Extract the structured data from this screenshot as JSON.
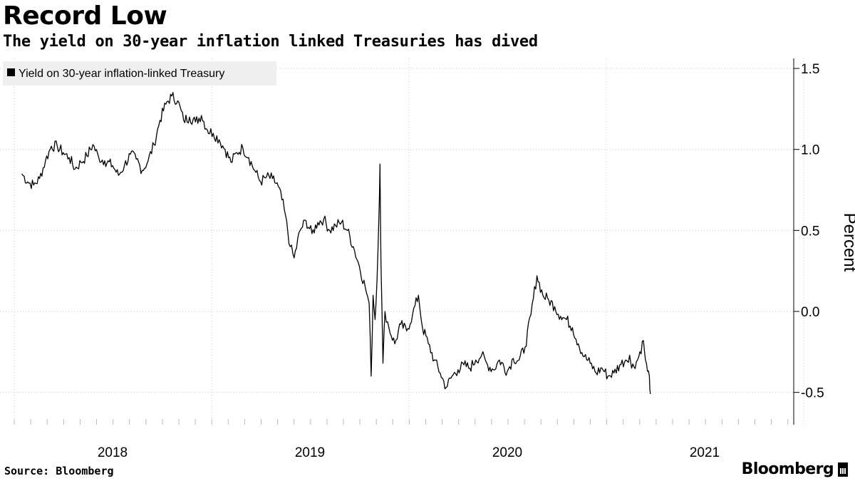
{
  "header": {
    "title": "Record Low",
    "subtitle": "The yield on 30-year inflation linked Treasuries has dived"
  },
  "footer": {
    "source": "Source: Bloomberg",
    "brand": "Bloomberg"
  },
  "colors": {
    "line": "#000000",
    "grid": "#c8c8c8",
    "legend_bg": "#efefef",
    "axis": "#000000"
  },
  "chart_data": {
    "type": "line",
    "title": "Record Low",
    "subtitle": "The yield on 30-year inflation linked Treasuries has dived",
    "xlabel": "",
    "ylabel": "Percent",
    "x_ticks": [
      "2018",
      "2019",
      "2020",
      "2021"
    ],
    "y_ticks": [
      "1.5",
      "1.0",
      "0.5",
      "0.0",
      "-0.5"
    ],
    "y_tick_values": [
      1.5,
      1.0,
      0.5,
      0.0,
      -0.5
    ],
    "ylim": [
      -0.7,
      1.6
    ],
    "xlim": [
      2017.54,
      2021.5
    ],
    "grid": true,
    "legend_position": "top-left",
    "series": [
      {
        "name": "Yield on 30-year inflation-linked Treasury",
        "points": [
          [
            2017.54,
            0.85
          ],
          [
            2017.57,
            0.8
          ],
          [
            2017.6,
            0.78
          ],
          [
            2017.63,
            0.82
          ],
          [
            2017.66,
            0.93
          ],
          [
            2017.69,
            1.02
          ],
          [
            2017.72,
            1.02
          ],
          [
            2017.75,
            0.98
          ],
          [
            2017.78,
            0.95
          ],
          [
            2017.81,
            0.88
          ],
          [
            2017.84,
            0.92
          ],
          [
            2017.87,
            0.96
          ],
          [
            2017.9,
            1.03
          ],
          [
            2017.93,
            0.95
          ],
          [
            2017.96,
            0.93
          ],
          [
            2018.0,
            0.9
          ],
          [
            2018.03,
            0.84
          ],
          [
            2018.06,
            0.9
          ],
          [
            2018.09,
            0.97
          ],
          [
            2018.12,
            0.94
          ],
          [
            2018.15,
            0.87
          ],
          [
            2018.18,
            0.93
          ],
          [
            2018.21,
            1.03
          ],
          [
            2018.24,
            1.18
          ],
          [
            2018.27,
            1.28
          ],
          [
            2018.3,
            1.33
          ],
          [
            2018.33,
            1.3
          ],
          [
            2018.36,
            1.18
          ],
          [
            2018.39,
            1.2
          ],
          [
            2018.42,
            1.17
          ],
          [
            2018.45,
            1.21
          ],
          [
            2018.48,
            1.12
          ],
          [
            2018.51,
            1.1
          ],
          [
            2018.54,
            1.06
          ],
          [
            2018.57,
            1.0
          ],
          [
            2018.6,
            0.92
          ],
          [
            2018.63,
            0.98
          ],
          [
            2018.66,
            1.01
          ],
          [
            2018.69,
            0.95
          ],
          [
            2018.72,
            0.87
          ],
          [
            2018.75,
            0.8
          ],
          [
            2018.78,
            0.83
          ],
          [
            2018.81,
            0.82
          ],
          [
            2018.84,
            0.77
          ],
          [
            2018.87,
            0.63
          ],
          [
            2018.9,
            0.4
          ],
          [
            2018.92,
            0.33
          ],
          [
            2018.95,
            0.5
          ],
          [
            2018.98,
            0.56
          ],
          [
            2019.01,
            0.48
          ],
          [
            2019.04,
            0.55
          ],
          [
            2019.07,
            0.57
          ],
          [
            2019.1,
            0.5
          ],
          [
            2019.13,
            0.53
          ],
          [
            2019.16,
            0.55
          ],
          [
            2019.19,
            0.5
          ],
          [
            2019.22,
            0.4
          ],
          [
            2019.25,
            0.28
          ],
          [
            2019.28,
            0.15
          ],
          [
            2019.3,
            0.05
          ],
          [
            2019.31,
            -0.4
          ],
          [
            2019.32,
            0.1
          ],
          [
            2019.33,
            -0.05
          ],
          [
            2019.34,
            0.2
          ],
          [
            2019.35,
            0.6
          ],
          [
            2019.355,
            0.91
          ],
          [
            2019.36,
            0.3
          ],
          [
            2019.37,
            -0.32
          ],
          [
            2019.38,
            0.0
          ],
          [
            2019.4,
            -0.1
          ],
          [
            2019.43,
            -0.2
          ],
          [
            2019.46,
            -0.08
          ],
          [
            2019.49,
            -0.12
          ],
          [
            2019.52,
            -0.02
          ],
          [
            2019.55,
            0.1
          ],
          [
            2019.57,
            -0.1
          ],
          [
            2019.6,
            -0.2
          ],
          [
            2019.63,
            -0.3
          ],
          [
            2019.66,
            -0.38
          ],
          [
            2019.69,
            -0.47
          ],
          [
            2019.72,
            -0.4
          ],
          [
            2019.75,
            -0.36
          ],
          [
            2019.78,
            -0.33
          ],
          [
            2019.81,
            -0.35
          ],
          [
            2019.84,
            -0.3
          ],
          [
            2019.87,
            -0.27
          ],
          [
            2019.9,
            -0.33
          ],
          [
            2019.93,
            -0.36
          ],
          [
            2019.96,
            -0.3
          ],
          [
            2020.0,
            -0.37
          ],
          [
            2020.03,
            -0.29
          ],
          [
            2020.06,
            -0.3
          ],
          [
            2020.09,
            -0.22
          ],
          [
            2020.12,
            -0.02
          ],
          [
            2020.15,
            0.22
          ],
          [
            2020.18,
            0.1
          ],
          [
            2020.21,
            0.07
          ],
          [
            2020.24,
            0.03
          ],
          [
            2020.27,
            -0.03
          ],
          [
            2020.3,
            -0.05
          ],
          [
            2020.33,
            -0.1
          ],
          [
            2020.36,
            -0.2
          ],
          [
            2020.39,
            -0.28
          ],
          [
            2020.42,
            -0.32
          ],
          [
            2020.45,
            -0.38
          ],
          [
            2020.48,
            -0.35
          ],
          [
            2020.51,
            -0.4
          ],
          [
            2020.54,
            -0.38
          ],
          [
            2020.57,
            -0.33
          ],
          [
            2020.6,
            -0.3
          ],
          [
            2020.62,
            -0.27
          ],
          [
            2020.63,
            -0.35
          ],
          [
            2020.66,
            -0.3
          ],
          [
            2020.69,
            -0.18
          ],
          [
            2020.7,
            -0.3
          ],
          [
            2020.71,
            -0.37
          ],
          [
            2020.72,
            -0.4
          ],
          [
            2020.725,
            -0.51
          ]
        ]
      }
    ]
  }
}
